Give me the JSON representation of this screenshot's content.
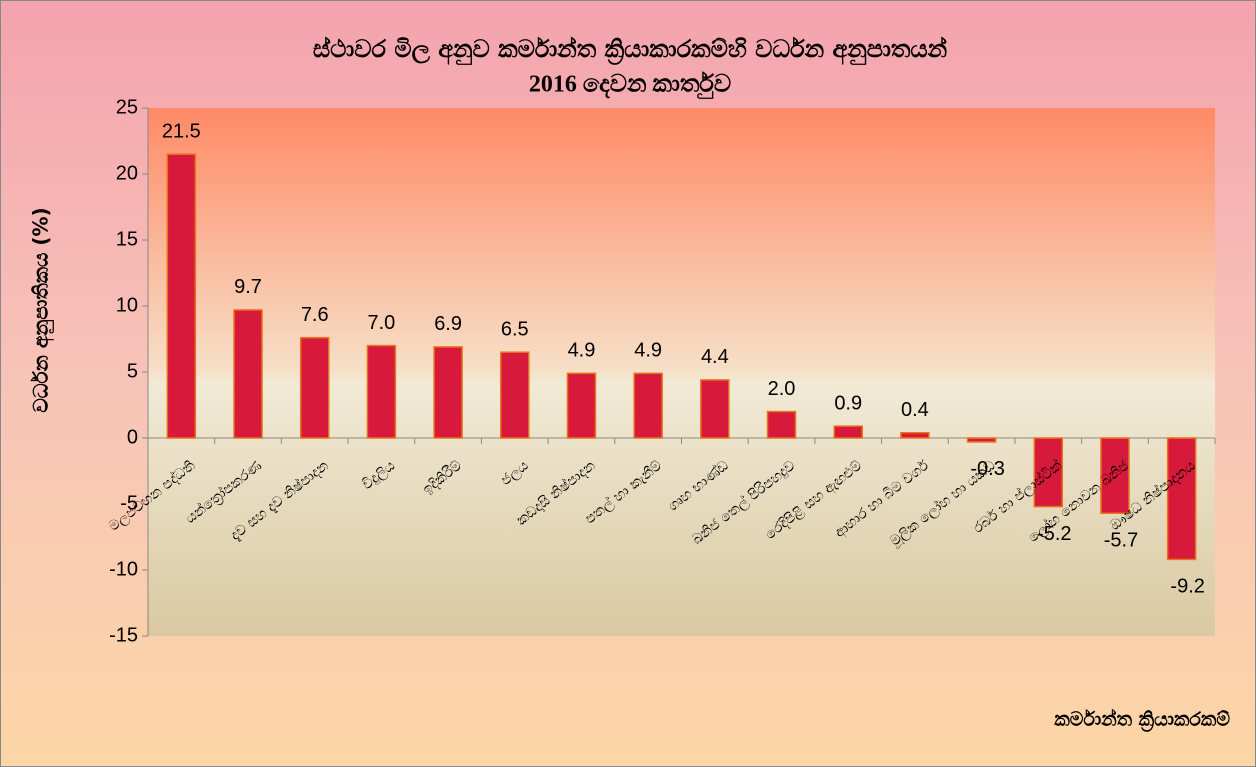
{
  "chart_data": {
    "type": "bar",
    "title": "ස්ථාවර මිල අනුව කර්මාන්ත ක්‍රියාකාරකම්හි වර්ධන අනුපාතයන්",
    "subtitle": "2016 දෙවන කාර්තුව",
    "y_label": "වර්ධන අනුපාතිකය (%)",
    "x_label": "කර්මාන්ත ක්‍රියාකරකම්",
    "categories": [
      "මලපවහන පද්ධති",
      "යන්ත්‍රෝපකරණ",
      "දැව සහ දැව නිෂ්පාදන",
      "විදුලිය",
      "ඉදිකිරීම්",
      "ජලය",
      "කඩදාසි නිෂ්පාදන",
      "පතල් හා කැනීම්",
      "ගෘහ භාණ්ඩ",
      "ඛනිජ තෙල් පිරිපහදුව",
      "රෙදිපිළි සහ ඇඟළුම්",
      "ආහාර හා බීම වර්ග",
      "මූලික ලෝහ හා යකඩ",
      "රබර් හා ප්ලාස්ටික්",
      "ලෝහ නොවන ඛනිජ",
      "ඖෂධ නිෂ්පාදනය"
    ],
    "values": [
      21.5,
      9.7,
      7.6,
      7.0,
      6.9,
      6.5,
      4.9,
      4.9,
      4.4,
      2.0,
      0.9,
      0.4,
      -0.3,
      -5.2,
      -5.7,
      -9.2
    ],
    "value_labels": [
      "21.5",
      "9.7",
      "7.6",
      "7.0",
      "6.9",
      "6.5",
      "4.9",
      "4.9",
      "4.4",
      "2.0",
      "0.9",
      "0.4",
      "-0.3",
      "-5.2",
      "-5.7",
      "-9.2"
    ],
    "color": "#d71a3c",
    "ylim": [
      -15,
      25
    ],
    "yticks": [
      -15,
      -10,
      -5,
      0,
      5,
      10,
      15,
      20,
      25
    ]
  }
}
